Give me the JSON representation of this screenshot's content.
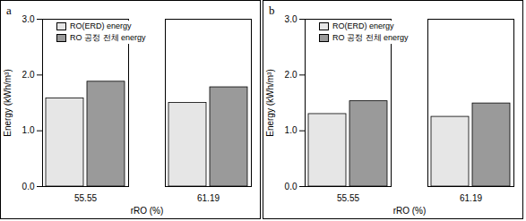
{
  "chart_data": [
    {
      "type": "bar",
      "title": "a",
      "categories": [
        "55.55",
        "61.19"
      ],
      "series": [
        {
          "name": "RO(ERD) energy",
          "color": "#e6e6e6",
          "values": [
            1.58,
            1.5
          ]
        },
        {
          "name": "RO 공정 전체 energy",
          "color": "#9a9a9a",
          "values": [
            1.88,
            1.78
          ]
        }
      ],
      "x_label": "rRO (%)",
      "y_label": "Energy (kWh/m³)",
      "ylim": [
        0,
        3
      ],
      "yticks": [
        0,
        1,
        2,
        3
      ],
      "legend": "top-left"
    },
    {
      "type": "bar",
      "title": "b",
      "categories": [
        "55.55",
        "61.19"
      ],
      "series": [
        {
          "name": "RO(ERD) energy",
          "color": "#e6e6e6",
          "values": [
            1.3,
            1.25
          ]
        },
        {
          "name": "RO 공정 전체 energy",
          "color": "#9a9a9a",
          "values": [
            1.53,
            1.49
          ]
        }
      ],
      "x_label": "rRO (%)",
      "y_label": "Energy (kWh/m³)",
      "ylim": [
        0,
        3
      ],
      "yticks": [
        0,
        1,
        2,
        3
      ],
      "legend": "top-left"
    }
  ]
}
